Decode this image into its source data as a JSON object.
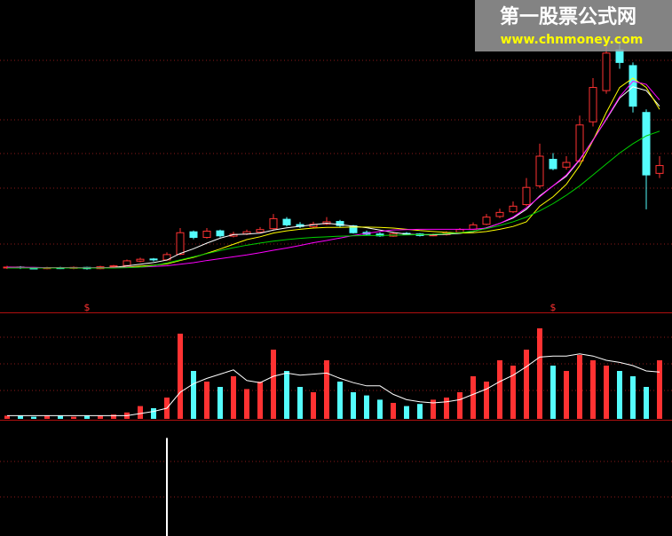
{
  "watermark": {
    "title": "第一股票公式网",
    "url": "www.chnmoney.com"
  },
  "chart_data": [
    {
      "type": "candlestick",
      "ylim": [
        0,
        100
      ],
      "up_color": "#ff3232",
      "down_color": "#54fcfc",
      "open": [
        14.3,
        14.5,
        14.2,
        14.0,
        14.3,
        14.1,
        14.4,
        14.0,
        14.6,
        15.0,
        16.4,
        17.1,
        16.8,
        18.6,
        25.8,
        24.0,
        26.1,
        24.4,
        25.1,
        25.7,
        26.8,
        29.8,
        28.1,
        27.4,
        28.3,
        29.1,
        27.7,
        25.6,
        25.1,
        24.4,
        25.3,
        25.1,
        24.7,
        24.9,
        25.6,
        26.6,
        28.2,
        30.7,
        32.2,
        34.5,
        40.5,
        49.0,
        46.5,
        48.5,
        61.0,
        71.0,
        84.0,
        79.0,
        64.0,
        44.5
      ],
      "high": [
        14.9,
        14.8,
        14.5,
        14.6,
        14.6,
        14.7,
        14.6,
        14.9,
        15.2,
        16.9,
        17.5,
        17.4,
        19.2,
        27.0,
        26.2,
        27.0,
        26.5,
        25.8,
        26.5,
        27.3,
        31.5,
        30.5,
        28.9,
        29.0,
        30.5,
        29.6,
        28.0,
        26.2,
        25.6,
        25.8,
        25.7,
        25.4,
        25.3,
        26.0,
        27.0,
        28.8,
        31.5,
        33.2,
        35.5,
        43.0,
        54.0,
        51.0,
        50.0,
        63.0,
        75.0,
        87.0,
        86.0,
        80.0,
        65.0,
        50.0
      ],
      "low": [
        13.9,
        13.9,
        13.8,
        13.8,
        13.9,
        13.8,
        13.7,
        13.8,
        14.4,
        14.8,
        16.0,
        16.3,
        16.5,
        18.3,
        23.4,
        23.6,
        24.0,
        24.0,
        24.7,
        25.4,
        26.5,
        27.5,
        27.0,
        27.0,
        27.9,
        27.2,
        25.2,
        24.6,
        24.2,
        24.2,
        24.8,
        24.3,
        24.4,
        24.6,
        25.3,
        26.3,
        27.9,
        30.2,
        31.8,
        34.0,
        39.8,
        45.5,
        45.7,
        47.8,
        59.5,
        70.0,
        78.0,
        64.0,
        33.0,
        43.0
      ],
      "close": [
        14.5,
        14.2,
        14.0,
        14.3,
        14.1,
        14.4,
        14.0,
        14.6,
        14.9,
        16.5,
        17.0,
        16.8,
        18.5,
        25.5,
        24.0,
        26.0,
        24.5,
        25.0,
        25.8,
        26.5,
        30.0,
        28.0,
        27.5,
        28.2,
        29.0,
        27.8,
        25.5,
        25.0,
        24.5,
        25.2,
        25.0,
        24.6,
        24.8,
        25.5,
        26.5,
        28.0,
        30.5,
        32.0,
        34.0,
        40.0,
        50.0,
        46.0,
        48.0,
        60.0,
        72.0,
        83.0,
        80.0,
        66.0,
        44.0,
        47.0
      ],
      "series": [
        {
          "color": "#ffffff",
          "values": [
            14.5,
            14.35,
            14.23,
            14.25,
            14.22,
            14.2,
            14.16,
            14.28,
            14.4,
            14.88,
            15.4,
            15.96,
            16.74,
            18.86,
            20.36,
            22.16,
            23.76,
            24.9,
            25.06,
            25.36,
            26.36,
            27.06,
            27.56,
            28.04,
            28.54,
            28.1,
            27.6,
            27.1,
            26.36,
            25.6,
            25.04,
            24.86,
            24.82,
            25.02,
            25.28,
            25.88,
            27.06,
            28.5,
            30.2,
            33.0,
            37.3,
            40.5,
            43.6,
            48.8,
            55.2,
            61.8,
            68.6,
            72.2,
            71.0,
            66.0
          ]
        },
        {
          "color": "#ffff00",
          "values": [
            14.5,
            14.4,
            14.3,
            14.3,
            14.3,
            14.3,
            14.2,
            14.3,
            14.3,
            14.5,
            14.8,
            15.1,
            15.5,
            16.6,
            17.6,
            18.9,
            20.3,
            21.8,
            23.3,
            24.2,
            25.4,
            26.1,
            26.6,
            27.0,
            27.2,
            27.2,
            27.3,
            27.3,
            27.2,
            27.0,
            26.6,
            26.2,
            25.9,
            25.6,
            25.4,
            25.5,
            25.9,
            26.6,
            27.5,
            29.0,
            34,
            37,
            41,
            47,
            55,
            64,
            72,
            75,
            72,
            65
          ]
        },
        {
          "color": "#ff00ff",
          "values": [
            14.5,
            14.4,
            14.4,
            14.3,
            14.3,
            14.3,
            14.3,
            14.3,
            14.3,
            14.4,
            14.5,
            14.7,
            14.9,
            15.4,
            15.9,
            16.6,
            17.2,
            17.8,
            18.4,
            19.1,
            19.9,
            20.6,
            21.4,
            22.3,
            23.0,
            23.8,
            24.6,
            25.3,
            25.9,
            26.4,
            26.5,
            26.6,
            26.6,
            26.6,
            26.6,
            26.6,
            27,
            28.5,
            30.5,
            33.5,
            37,
            40.5,
            44,
            49,
            55,
            62,
            69,
            74,
            73,
            68
          ]
        },
        {
          "color": "#00d000",
          "values": [
            14.2,
            14.2,
            14.2,
            14.2,
            14.2,
            14.2,
            14.2,
            14.2,
            14.2,
            14.3,
            14.5,
            15.0,
            15.8,
            16.8,
            17.8,
            18.8,
            19.8,
            20.7,
            21.5,
            22.2,
            22.8,
            23.3,
            23.7,
            24.0,
            24.2,
            24.4,
            24.5,
            24.6,
            24.6,
            24.7,
            24.8,
            24.9,
            25.0,
            25.2,
            25.5,
            26.0,
            26.8,
            27.8,
            29.0,
            30.5,
            32.5,
            34.8,
            37.5,
            40.5,
            44.0,
            47.5,
            51.0,
            54.0,
            56.5,
            58.0
          ]
        }
      ],
      "annotations": [
        {
          "label": "$",
          "at": 6
        },
        {
          "label": "$",
          "at": 41
        }
      ]
    },
    {
      "type": "bar",
      "ylim": [
        0,
        100
      ],
      "values": [
        3,
        3,
        2,
        3,
        3,
        2,
        3,
        3,
        4,
        6,
        12,
        10,
        20,
        80,
        45,
        35,
        30,
        40,
        28,
        35,
        65,
        45,
        30,
        25,
        55,
        35,
        25,
        22,
        18,
        15,
        12,
        14,
        18,
        20,
        25,
        40,
        35,
        55,
        50,
        65,
        85,
        50,
        45,
        60,
        55,
        50,
        45,
        40,
        30,
        55
      ],
      "series": [
        {
          "color": "#ffffff",
          "values": [
            3,
            3,
            3,
            3,
            3,
            3,
            3,
            3,
            3,
            3,
            5,
            7,
            10,
            25,
            33,
            38,
            42,
            46,
            36,
            34,
            40,
            43,
            41,
            42,
            43,
            38,
            34,
            31,
            31,
            23,
            18,
            16,
            15,
            16,
            18,
            23,
            28,
            35,
            41,
            49,
            58,
            59,
            59,
            61,
            59,
            55,
            53,
            50,
            45,
            44
          ]
        }
      ]
    },
    {
      "type": "bar",
      "ylim": [
        0,
        100
      ],
      "color": "#ffffff",
      "values": [
        0,
        0,
        0,
        0,
        0,
        0,
        0,
        0,
        0,
        0,
        0,
        0,
        85,
        0,
        0,
        0,
        0,
        0,
        0,
        0,
        0,
        0,
        0,
        0,
        0,
        0,
        0,
        0,
        0,
        0,
        0,
        0,
        0,
        0,
        0,
        0,
        0,
        0,
        0,
        0,
        0,
        0,
        0,
        0,
        0,
        0,
        0,
        0,
        0,
        0
      ]
    }
  ]
}
